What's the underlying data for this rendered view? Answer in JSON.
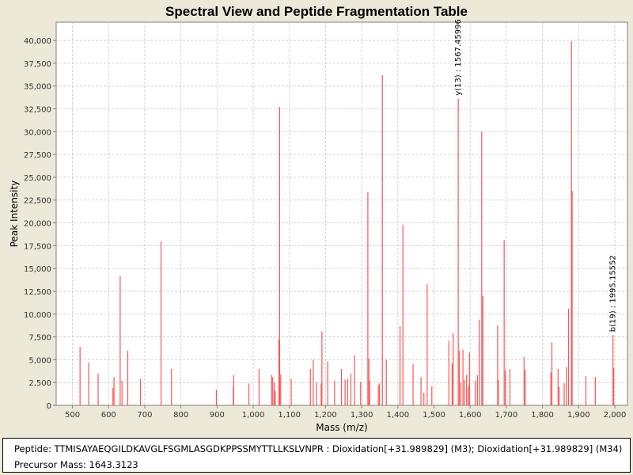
{
  "chart_data": {
    "type": "bar",
    "title": "Spectral View and Peptide Fragmentation Table",
    "xlabel": "Mass (m/z)",
    "ylabel": "Peak Intensity",
    "xlim": [
      455,
      2035
    ],
    "ylim": [
      0,
      42000
    ],
    "x_ticks": [
      500,
      600,
      700,
      800,
      900,
      1000,
      1100,
      1200,
      1300,
      1400,
      1500,
      1600,
      1700,
      1800,
      1900,
      2000
    ],
    "x_tick_labels": [
      "500",
      "600",
      "700",
      "800",
      "900",
      "1,000",
      "1,100",
      "1,200",
      "1,300",
      "1,400",
      "1,500",
      "1,600",
      "1,700",
      "1,800",
      "1,900",
      "2,000"
    ],
    "y_ticks": [
      0,
      2500,
      5000,
      7500,
      10000,
      12500,
      15000,
      17500,
      20000,
      22500,
      25000,
      27500,
      30000,
      32500,
      35000,
      37500,
      40000
    ],
    "y_tick_labels": [
      "0",
      "2,500",
      "5,000",
      "7,500",
      "10,000",
      "12,500",
      "15,000",
      "17,500",
      "20,000",
      "22,500",
      "25,000",
      "27,500",
      "30,000",
      "32,500",
      "35,000",
      "37,500",
      "40,000"
    ],
    "grid": true,
    "peak_color": "#ff5555",
    "peaks": [
      {
        "mz": 521,
        "intensity": 6400
      },
      {
        "mz": 545,
        "intensity": 4700
      },
      {
        "mz": 571,
        "intensity": 3500
      },
      {
        "mz": 612,
        "intensity": 1900
      },
      {
        "mz": 615,
        "intensity": 3100
      },
      {
        "mz": 632,
        "intensity": 14200
      },
      {
        "mz": 637,
        "intensity": 2700
      },
      {
        "mz": 653,
        "intensity": 6000
      },
      {
        "mz": 688,
        "intensity": 2900
      },
      {
        "mz": 745,
        "intensity": 18000
      },
      {
        "mz": 774,
        "intensity": 4000
      },
      {
        "mz": 898,
        "intensity": 1700
      },
      {
        "mz": 945,
        "intensity": 2000
      },
      {
        "mz": 946,
        "intensity": 3300
      },
      {
        "mz": 988,
        "intensity": 2400
      },
      {
        "mz": 1016,
        "intensity": 4000
      },
      {
        "mz": 1051,
        "intensity": 3300
      },
      {
        "mz": 1054,
        "intensity": 3100
      },
      {
        "mz": 1058,
        "intensity": 2500
      },
      {
        "mz": 1061,
        "intensity": 1600
      },
      {
        "mz": 1071,
        "intensity": 7200
      },
      {
        "mz": 1073,
        "intensity": 32700
      },
      {
        "mz": 1076,
        "intensity": 3400
      },
      {
        "mz": 1105,
        "intensity": 2900
      },
      {
        "mz": 1158,
        "intensity": 4000
      },
      {
        "mz": 1166,
        "intensity": 5000
      },
      {
        "mz": 1175,
        "intensity": 2500
      },
      {
        "mz": 1188,
        "intensity": 2400
      },
      {
        "mz": 1190,
        "intensity": 8100
      },
      {
        "mz": 1206,
        "intensity": 4800
      },
      {
        "mz": 1225,
        "intensity": 2700
      },
      {
        "mz": 1244,
        "intensity": 4000
      },
      {
        "mz": 1254,
        "intensity": 2800
      },
      {
        "mz": 1261,
        "intensity": 2900
      },
      {
        "mz": 1270,
        "intensity": 3500
      },
      {
        "mz": 1280,
        "intensity": 5500
      },
      {
        "mz": 1297,
        "intensity": 2600
      },
      {
        "mz": 1317,
        "intensity": 23400
      },
      {
        "mz": 1320,
        "intensity": 5100
      },
      {
        "mz": 1322,
        "intensity": 2700
      },
      {
        "mz": 1346,
        "intensity": 2200
      },
      {
        "mz": 1349,
        "intensity": 2400
      },
      {
        "mz": 1357,
        "intensity": 36200
      },
      {
        "mz": 1368,
        "intensity": 5000
      },
      {
        "mz": 1406,
        "intensity": 8700
      },
      {
        "mz": 1414,
        "intensity": 19800
      },
      {
        "mz": 1442,
        "intensity": 4500
      },
      {
        "mz": 1464,
        "intensity": 3100
      },
      {
        "mz": 1472,
        "intensity": 1400
      },
      {
        "mz": 1481,
        "intensity": 13300
      },
      {
        "mz": 1494,
        "intensity": 2100
      },
      {
        "mz": 1541,
        "intensity": 7100
      },
      {
        "mz": 1550,
        "intensity": 4600
      },
      {
        "mz": 1553,
        "intensity": 7900
      },
      {
        "mz": 1567,
        "intensity": 33600
      },
      {
        "mz": 1570,
        "intensity": 6000
      },
      {
        "mz": 1574,
        "intensity": 2500
      },
      {
        "mz": 1580,
        "intensity": 6100
      },
      {
        "mz": 1584,
        "intensity": 2800
      },
      {
        "mz": 1590,
        "intensity": 3300
      },
      {
        "mz": 1595,
        "intensity": 2100
      },
      {
        "mz": 1598,
        "intensity": 5800
      },
      {
        "mz": 1614,
        "intensity": 2700
      },
      {
        "mz": 1620,
        "intensity": 3300
      },
      {
        "mz": 1625,
        "intensity": 9400
      },
      {
        "mz": 1632,
        "intensity": 30000
      },
      {
        "mz": 1635,
        "intensity": 12000
      },
      {
        "mz": 1676,
        "intensity": 8800
      },
      {
        "mz": 1678,
        "intensity": 2800
      },
      {
        "mz": 1694,
        "intensity": 18100
      },
      {
        "mz": 1697,
        "intensity": 3800
      },
      {
        "mz": 1710,
        "intensity": 4000
      },
      {
        "mz": 1749,
        "intensity": 5300
      },
      {
        "mz": 1752,
        "intensity": 3900
      },
      {
        "mz": 1823,
        "intensity": 3600
      },
      {
        "mz": 1826,
        "intensity": 6900
      },
      {
        "mz": 1843,
        "intensity": 4000
      },
      {
        "mz": 1846,
        "intensity": 2000
      },
      {
        "mz": 1860,
        "intensity": 2400
      },
      {
        "mz": 1866,
        "intensity": 4200
      },
      {
        "mz": 1872,
        "intensity": 10600
      },
      {
        "mz": 1880,
        "intensity": 39900
      },
      {
        "mz": 1882,
        "intensity": 23500
      },
      {
        "mz": 1920,
        "intensity": 3200
      },
      {
        "mz": 1946,
        "intensity": 3100
      },
      {
        "mz": 1995,
        "intensity": 7700
      },
      {
        "mz": 1997,
        "intensity": 4100
      }
    ],
    "annotations": [
      {
        "mz": 1567,
        "intensity": 33600,
        "text": "y(13) : 1567.45996"
      },
      {
        "mz": 1995,
        "intensity": 7700,
        "text": "b(19) : 1995.15552"
      }
    ]
  },
  "info": {
    "peptide": "Peptide: TTMISAYAEQGILDKAVGLFSGMLASGDKPPSSMYTTLLKSLVNPR : Dioxidation[+31.989829] (M3); Dioxidation[+31.989829] (M34)",
    "precursor": "Precursor Mass: 1643.3123"
  }
}
